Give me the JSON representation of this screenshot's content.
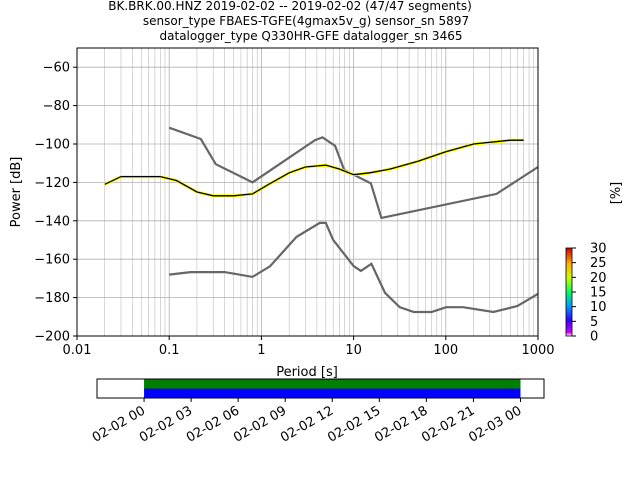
{
  "chart_data": [
    {
      "type": "heatmap",
      "title_lines": [
        "BK.BRK.00.HNZ   2019-02-02 -- 2019-02-02  (47/47 segments)",
        "sensor_type FBAES-TGFE(4gmax5v_g) sensor_sn 5897",
        "datalogger_type Q330HR-GFE datalogger_sn 3465"
      ],
      "xlabel": "Period [s]",
      "ylabel": "Power [dB]",
      "x_scale": "log",
      "xlim": [
        0.01,
        1000
      ],
      "ylim": [
        -200,
        -50
      ],
      "x_ticks": [
        0.01,
        0.1,
        1,
        10,
        100,
        1000
      ],
      "x_tick_labels": [
        "0.01",
        "0.1",
        "1",
        "10",
        "100",
        "1000"
      ],
      "y_ticks": [
        -200,
        -180,
        -160,
        -140,
        -120,
        -100,
        -80,
        -60
      ],
      "y_tick_labels": [
        "−200",
        "−180",
        "−160",
        "−140",
        "−120",
        "−100",
        "−80",
        "−60"
      ],
      "grid": true,
      "colorbar": {
        "label": "[%]",
        "ticks": [
          0,
          5,
          10,
          15,
          20,
          25,
          30
        ],
        "tick_labels": [
          "0",
          "5",
          "10",
          "15",
          "20",
          "25",
          "30"
        ],
        "range": [
          0,
          30
        ]
      },
      "series": [
        {
          "name": "",
          "kind": "noise-model-high",
          "color": "#666666",
          "x": [
            0.1,
            0.22,
            0.32,
            0.8,
            3.8,
            4.6,
            6.3,
            7.9,
            15.4,
            20,
            354.8,
            1000
          ],
          "y": [
            -91.5,
            -97.4,
            -110.5,
            -120,
            -98,
            -96.5,
            -101,
            -113.5,
            -120.5,
            -138.5,
            -126,
            -112
          ]
        },
        {
          "name": "",
          "kind": "noise-model-low",
          "color": "#666666",
          "x": [
            0.1,
            0.17,
            0.4,
            0.8,
            1.24,
            2.4,
            4.3,
            5,
            6,
            10,
            12,
            15.6,
            21.9,
            31.6,
            45,
            70,
            101,
            154,
            328,
            600,
            1000
          ],
          "y": [
            -168,
            -166.7,
            -166.7,
            -169.2,
            -163.7,
            -148.4,
            -141.1,
            -141.1,
            -149.9,
            -163.6,
            -166.1,
            -162.4,
            -177.5,
            -185,
            -187.5,
            -187.5,
            -185,
            -185,
            -187.5,
            -184.4,
            -178
          ]
        },
        {
          "name": "",
          "kind": "mode",
          "color": "#000000",
          "x": [
            0.02,
            0.03,
            0.05,
            0.08,
            0.12,
            0.2,
            0.3,
            0.5,
            0.8,
            1.2,
            2,
            3,
            5,
            7,
            10,
            15,
            25,
            50,
            100,
            200,
            500,
            700
          ],
          "y": [
            -121,
            -117,
            -117,
            -117,
            -119,
            -125,
            -127,
            -127,
            -126,
            -121,
            -115,
            -112,
            -111,
            -113,
            -116,
            -115,
            -113,
            -109,
            -104,
            -100,
            -98,
            -98
          ]
        }
      ],
      "density_band": {
        "x": [
          0.02,
          0.03,
          0.05,
          0.08,
          0.12,
          0.2,
          0.3,
          0.5,
          0.8,
          1.2,
          2,
          3,
          5,
          7,
          10,
          15,
          25,
          50,
          100,
          200,
          500,
          700
        ],
        "y_low": [
          -124,
          -121,
          -121,
          -121,
          -122,
          -127,
          -129,
          -129,
          -128,
          -124,
          -118,
          -115,
          -117,
          -118,
          -119,
          -118,
          -116,
          -112,
          -107,
          -104,
          -103,
          -103
        ],
        "y_high": [
          -118,
          -113,
          -113,
          -113,
          -114,
          -122,
          -125,
          -125,
          -124,
          -118,
          -112,
          -110,
          -109,
          -110,
          -113,
          -113,
          -110,
          -105,
          -101,
          -97,
          -95,
          -95
        ]
      }
    },
    {
      "type": "timeline",
      "x_tick_labels": [
        "02-02 00",
        "02-02 03",
        "02-02 06",
        "02-02 09",
        "02-02 12",
        "02-02 15",
        "02-02 18",
        "02-02 21",
        "02-03 00"
      ],
      "xlim": [
        "2019-02-01 21:00",
        "2019-02-03 01:30"
      ],
      "bars": [
        {
          "name": "",
          "color": "#008000",
          "start": "2019-02-02 00:00",
          "end": "2019-02-03 00:00"
        },
        {
          "name": "",
          "color": "#0000ff",
          "start": "2019-02-02 00:00",
          "end": "2019-02-03 00:00"
        }
      ]
    }
  ]
}
